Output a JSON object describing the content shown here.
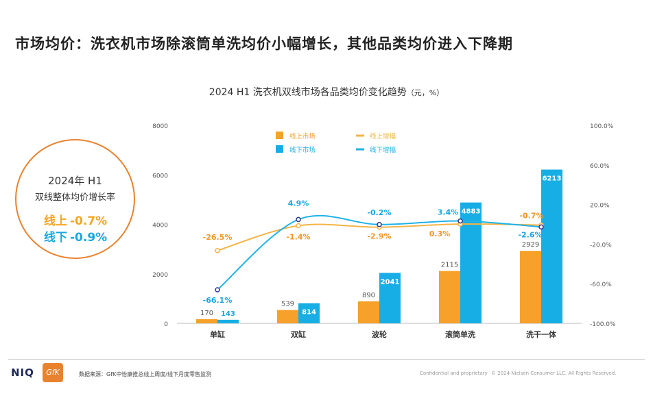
{
  "headline": "市场均价：洗衣机市场除滚筒单洗均价小幅增长，其他品类均价进入下降期",
  "chart_title": "2024 H1 洗衣机双线市场各品类均价变化趋势",
  "chart_unit": "（元，%）",
  "summary": {
    "year": "2024年 H1",
    "desc": "双线整体均价增长率",
    "online_label": "线上",
    "online_value": "-0.7%",
    "offline_label": "线下",
    "offline_value": "-0.9%"
  },
  "footer": {
    "niq": "NIQ",
    "gfk": "GfK",
    "source": "数据来源：GfK中怡康推总线上周度/线下月度零售监测",
    "confidential": "Confidential and proprietary",
    "copyright": "© 2024 Nielsen Consumer LLC. All Rights Reserved."
  },
  "colors": {
    "online": "#f7a02a",
    "offline": "#17aee6",
    "online_line": "#f5b445",
    "offline_line": "#1fb3e8",
    "circle": "#e9822d"
  },
  "chart_data": {
    "type": "bar",
    "categories": [
      "单缸",
      "双缸",
      "波轮",
      "滚筒单洗",
      "洗干一体"
    ],
    "series": [
      {
        "name": "线上市场",
        "kind": "bar",
        "axis": "left",
        "values": [
          170,
          539,
          890,
          2115,
          2929
        ],
        "labels": [
          "170",
          "539",
          "890",
          "2115",
          "2929"
        ]
      },
      {
        "name": "线下市场",
        "kind": "bar",
        "axis": "left",
        "values": [
          143,
          814,
          2041,
          4883,
          6213
        ],
        "labels": [
          "143",
          "814",
          "2041",
          "4883",
          "6213"
        ]
      },
      {
        "name": "线上增幅",
        "kind": "line",
        "axis": "right",
        "values": [
          -26.5,
          -1.4,
          -2.9,
          0.3,
          -0.7
        ],
        "labels": [
          "-26.5%",
          "-1.4%",
          "-2.9%",
          "0.3%",
          "-0.7%"
        ]
      },
      {
        "name": "线下增幅",
        "kind": "line",
        "axis": "right",
        "values": [
          -66.1,
          4.9,
          -0.2,
          3.4,
          -2.6
        ],
        "labels": [
          "-66.1%",
          "4.9%",
          "-0.2%",
          "3.4%",
          "-2.6%"
        ]
      }
    ],
    "y_left": {
      "range": [
        0,
        8000
      ],
      "ticks": [
        "0",
        "2000",
        "4000",
        "6000",
        "8000"
      ]
    },
    "y_right": {
      "range": [
        -100,
        100
      ],
      "ticks": [
        "-100.0%",
        "-60.0%",
        "-20.0%",
        "20.0%",
        "60.0%",
        "100.0%"
      ]
    },
    "legend_position": "top-center",
    "grid": false
  }
}
